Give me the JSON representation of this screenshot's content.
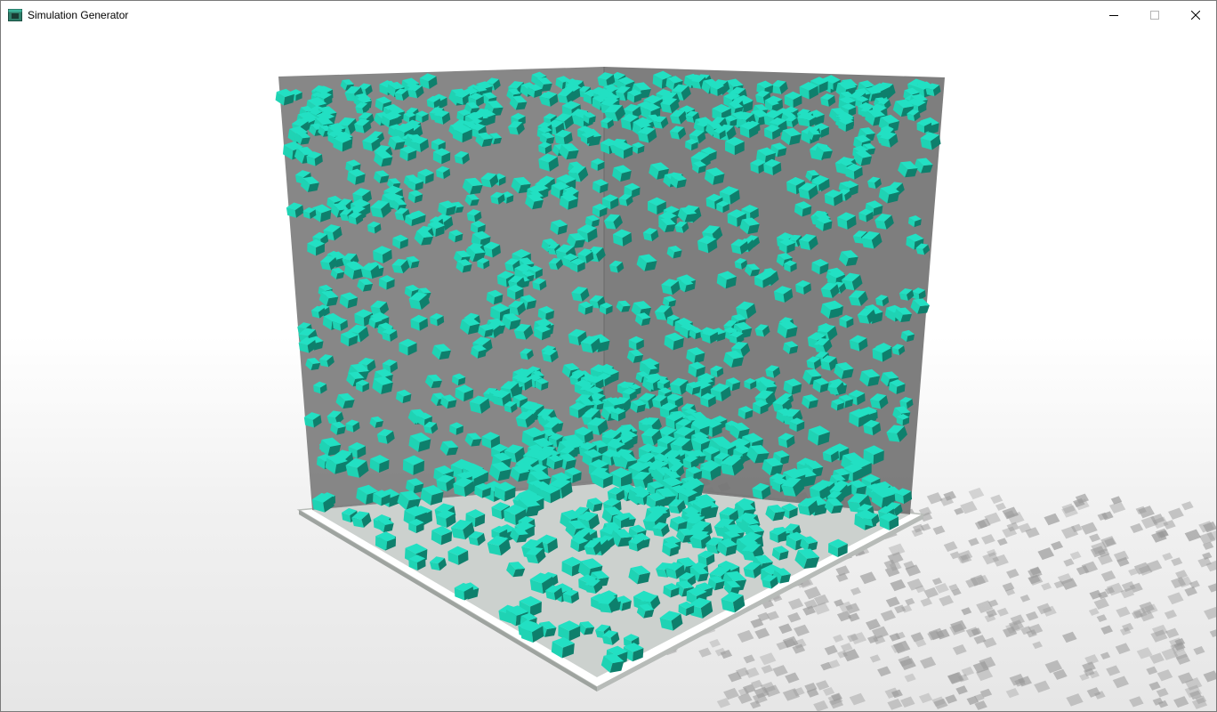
{
  "window": {
    "title": "Simulation Generator",
    "icon": "app-window-icon"
  },
  "controls": {
    "minimize_icon": "minimize-icon",
    "maximize_icon": "maximize-icon",
    "close_icon": "close-icon"
  },
  "scene": {
    "object_shape": "cube",
    "cube_color": "#1fd3b4",
    "cube_highlight": "#22e0c3",
    "cube_shadow_side": "#0e7f6c",
    "wall_color": "#7a7a7a",
    "floor_color": "#c7ccc9",
    "shadow_color": "#9a9a9a"
  }
}
